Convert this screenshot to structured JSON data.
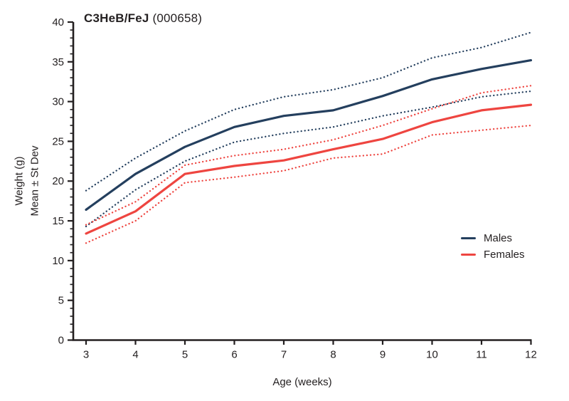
{
  "title": {
    "strain": "C3HeB/FeJ",
    "stock": "(000658)"
  },
  "axes": {
    "x_label": "Age (weeks)",
    "y_label_line1": "Weight (g)",
    "y_label_line2": "Mean ± St Dev",
    "x_ticks": [
      3,
      4,
      5,
      6,
      7,
      8,
      9,
      10,
      11,
      12
    ],
    "y_ticks": [
      0,
      5,
      10,
      15,
      20,
      25,
      30,
      35,
      40
    ],
    "y_minor_step": 1
  },
  "legend": {
    "items": [
      {
        "key": "males",
        "label": "Males",
        "color": "#243f5e"
      },
      {
        "key": "females",
        "label": "Females",
        "color": "#ee4540"
      }
    ]
  },
  "colors": {
    "axis": "#231f20",
    "text": "#231f20",
    "males": "#243f5e",
    "females": "#ee4540",
    "background": "#ffffff"
  },
  "chart_data": {
    "type": "line",
    "title": "C3HeB/FeJ (000658)",
    "xlabel": "Age (weeks)",
    "ylabel": "Weight (g), Mean ± St Dev",
    "x": [
      3,
      4,
      5,
      6,
      7,
      8,
      9,
      10,
      11,
      12
    ],
    "xlim": [
      3,
      12
    ],
    "ylim": [
      0,
      40
    ],
    "grid": false,
    "legend_position": "right-middle",
    "series": [
      {
        "name": "Males mean",
        "group": "males",
        "style": "solid",
        "color": "#243f5e",
        "values": [
          16.4,
          20.9,
          24.3,
          26.8,
          28.2,
          28.9,
          30.7,
          32.8,
          34.1,
          35.2
        ]
      },
      {
        "name": "Males mean + St Dev",
        "group": "males",
        "style": "dotted",
        "color": "#243f5e",
        "values": [
          18.8,
          22.9,
          26.3,
          29.0,
          30.6,
          31.5,
          33.0,
          35.5,
          36.8,
          38.7
        ]
      },
      {
        "name": "Males mean - St Dev",
        "group": "males",
        "style": "dotted",
        "color": "#243f5e",
        "values": [
          14.3,
          18.9,
          22.5,
          24.9,
          26.0,
          26.8,
          28.2,
          29.3,
          30.6,
          31.3
        ]
      },
      {
        "name": "Females mean",
        "group": "females",
        "style": "solid",
        "color": "#ee4540",
        "values": [
          13.4,
          16.2,
          20.9,
          21.9,
          22.6,
          24.0,
          25.3,
          27.4,
          28.9,
          29.6
        ]
      },
      {
        "name": "Females mean + St Dev",
        "group": "females",
        "style": "dotted",
        "color": "#ee4540",
        "values": [
          14.5,
          17.4,
          22.0,
          23.2,
          24.0,
          25.2,
          27.0,
          29.1,
          31.1,
          32.0
        ]
      },
      {
        "name": "Females mean - St Dev",
        "group": "females",
        "style": "dotted",
        "color": "#ee4540",
        "values": [
          12.2,
          15.0,
          19.8,
          20.5,
          21.3,
          22.9,
          23.4,
          25.8,
          26.4,
          27.0
        ]
      }
    ]
  }
}
